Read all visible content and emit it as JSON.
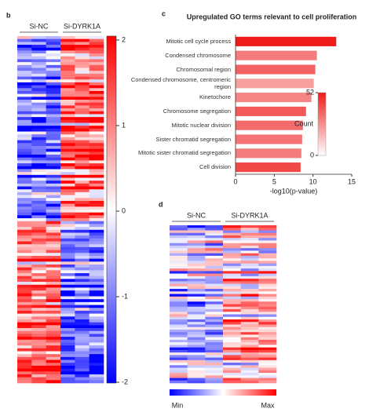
{
  "chart_data": [
    {
      "type": "heatmap",
      "panel": "b",
      "groups": [
        "Si-NC",
        "Si-DYRK1A"
      ],
      "colors": [
        "#0000ff",
        "#ffffff",
        "#ff0000"
      ],
      "clim": [
        -2,
        2
      ],
      "cticks": [
        -2,
        -1,
        0,
        1,
        2
      ]
    },
    {
      "type": "bar",
      "panel": "c",
      "title": "Upregulated GO terms relevant to cell proliferation",
      "orientation": "horizontal",
      "categories": [
        "Mitotic cell cycle process",
        "Condensed chromosome",
        "Chromosomal region",
        "Condensed chromosome, centromeric region",
        "Kinetochore",
        "Chromosome segregation",
        "Mitotic nuclear division",
        "Sister chromatid segregation",
        "Mitotic sister chromatid segregation",
        "Cell division"
      ],
      "values": [
        13,
        10.5,
        10.3,
        10.1,
        9.8,
        9.1,
        8.7,
        8.6,
        8.5,
        8.4
      ],
      "counts": [
        52,
        30,
        36,
        22,
        28,
        38,
        34,
        32,
        30,
        42
      ],
      "xlabel": "-log10(p-value)",
      "xlim": [
        0,
        15
      ],
      "xticks": [
        0,
        5,
        10,
        15
      ],
      "color_title": "Count",
      "colors": [
        "#ffffff",
        "#ee1c1c"
      ],
      "clim": [
        0,
        52
      ],
      "cticks": [
        0,
        52
      ]
    },
    {
      "type": "heatmap",
      "panel": "d",
      "groups": [
        "Si-NC",
        "Si-DYRK1A"
      ],
      "colors": [
        "#0000ff",
        "#ffffff",
        "#ff0000"
      ],
      "clabels": [
        "Min",
        "Max"
      ]
    }
  ]
}
